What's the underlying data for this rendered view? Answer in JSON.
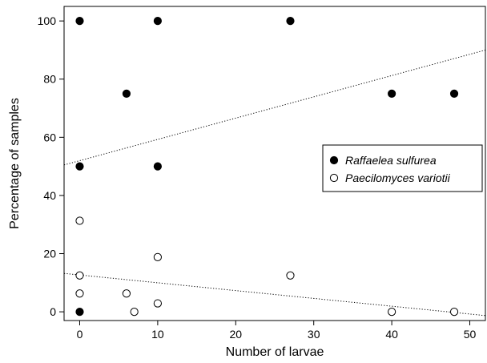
{
  "chart_data": {
    "type": "scatter",
    "xlabel": "Number of larvae",
    "ylabel": "Percentage of samples",
    "xlim": [
      -2,
      52
    ],
    "ylim": [
      -3,
      105
    ],
    "xticks": [
      0,
      10,
      20,
      30,
      40,
      50
    ],
    "yticks": [
      0,
      20,
      40,
      60,
      80,
      100
    ],
    "grid": false,
    "legend_position": "right",
    "series": [
      {
        "name": "Raffaelea sulfurea",
        "marker": "filled-circle",
        "color": "#000000",
        "points": [
          {
            "x": 0,
            "y": 100
          },
          {
            "x": 10,
            "y": 100
          },
          {
            "x": 27,
            "y": 100
          },
          {
            "x": 6,
            "y": 75
          },
          {
            "x": 40,
            "y": 75
          },
          {
            "x": 48,
            "y": 75
          },
          {
            "x": 0,
            "y": 50
          },
          {
            "x": 10,
            "y": 50
          },
          {
            "x": 0,
            "y": 0
          }
        ],
        "trendline": {
          "x1": -2,
          "y1": 50.5,
          "x2": 52,
          "y2": 90
        }
      },
      {
        "name": "Paecilomyces variotii",
        "marker": "open-circle",
        "color": "#000000",
        "points": [
          {
            "x": 0,
            "y": 31.3
          },
          {
            "x": 0,
            "y": 12.5
          },
          {
            "x": 0,
            "y": 6.3
          },
          {
            "x": 6,
            "y": 6.3
          },
          {
            "x": 7,
            "y": 0
          },
          {
            "x": 10,
            "y": 18.8
          },
          {
            "x": 10,
            "y": 2.9
          },
          {
            "x": 27,
            "y": 12.5
          },
          {
            "x": 40,
            "y": 0
          },
          {
            "x": 48,
            "y": 0
          }
        ],
        "trendline": {
          "x1": -2,
          "y1": 13.2,
          "x2": 52,
          "y2": -1.3
        }
      }
    ]
  }
}
